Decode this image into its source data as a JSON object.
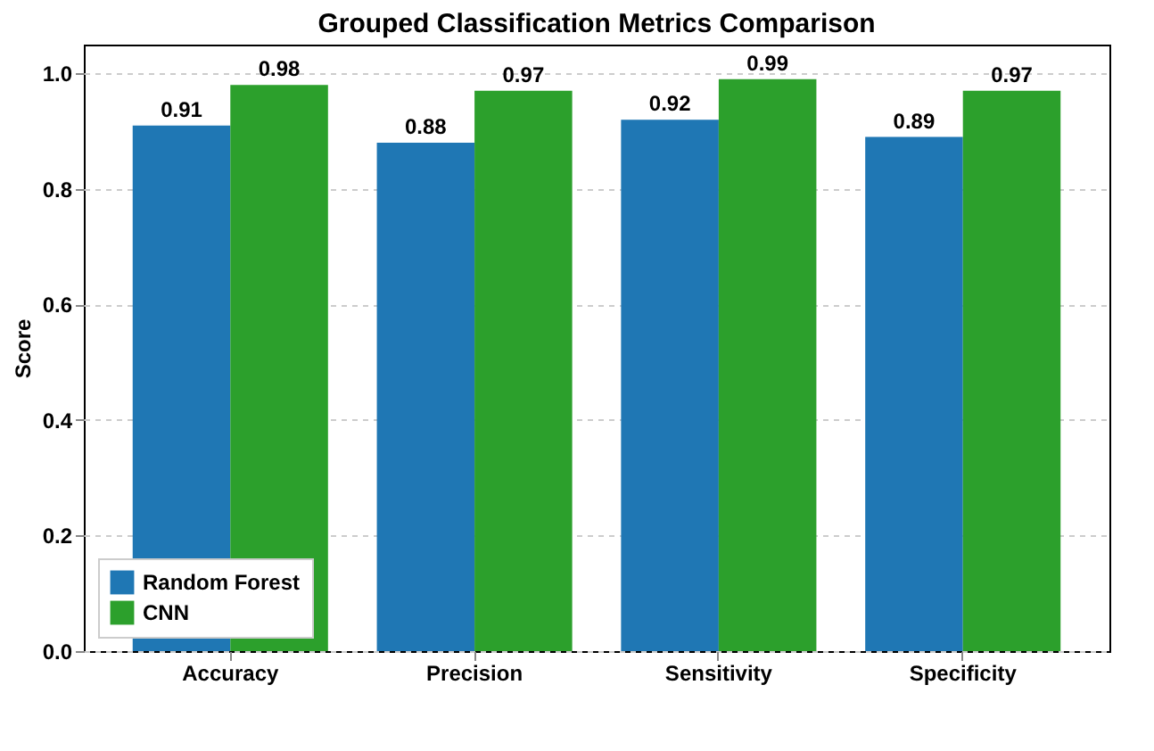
{
  "chart_data": {
    "type": "bar",
    "title": "Grouped Classification Metrics Comparison",
    "ylabel": "Score",
    "categories": [
      "Accuracy",
      "Precision",
      "Sensitivity",
      "Specificity"
    ],
    "series": [
      {
        "name": "Random Forest",
        "color": "#1f77b4",
        "values": [
          0.91,
          0.88,
          0.92,
          0.89
        ]
      },
      {
        "name": "CNN",
        "color": "#2ca02c",
        "values": [
          0.98,
          0.97,
          0.99,
          0.97
        ]
      }
    ],
    "ylim": [
      0,
      1.05
    ],
    "yticks": [
      {
        "value": 0,
        "label": "0.0"
      },
      {
        "value": 0.2,
        "label": "0.2"
      },
      {
        "value": 0.4,
        "label": "0.4"
      },
      {
        "value": 0.6,
        "label": "0.6"
      },
      {
        "value": 0.8,
        "label": "0.8"
      },
      {
        "value": 1,
        "label": "1.0"
      }
    ],
    "grid": "y",
    "legend": "bottom left",
    "data_labels": true
  }
}
